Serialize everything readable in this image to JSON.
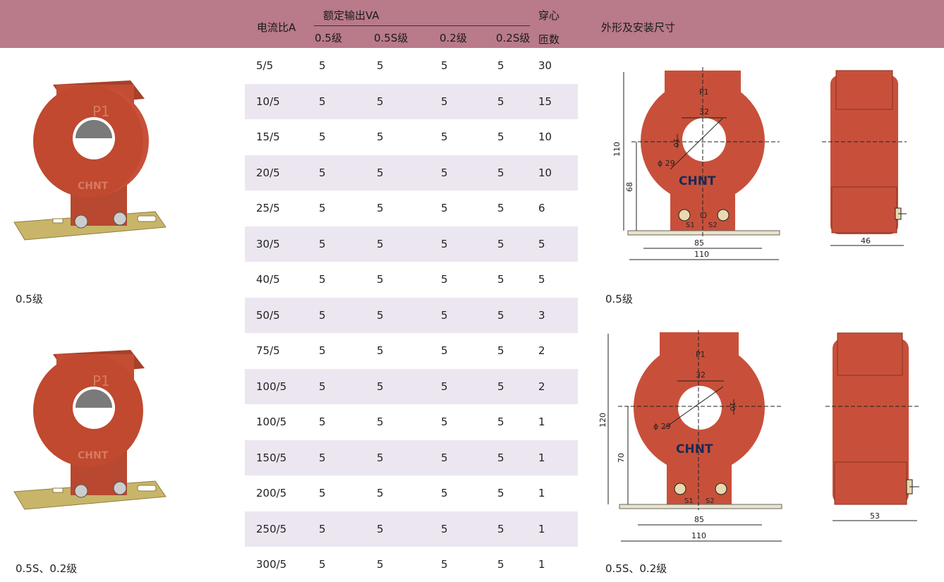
{
  "header": {
    "ratio": "电流比A",
    "rated_output": "额定输出VA",
    "class_05": "0.5级",
    "class_05s": "0.5S级",
    "class_02": "0.2级",
    "class_02s": "0.2S级",
    "turns_top": "穿心",
    "turns_bottom": "匝数",
    "dimensions": "外形及安装尺寸"
  },
  "rows": [
    {
      "ratio": "5/5",
      "c05": "5",
      "c05s": "5",
      "c02": "5",
      "c02s": "5",
      "turns": "30"
    },
    {
      "ratio": "10/5",
      "c05": "5",
      "c05s": "5",
      "c02": "5",
      "c02s": "5",
      "turns": "15"
    },
    {
      "ratio": "15/5",
      "c05": "5",
      "c05s": "5",
      "c02": "5",
      "c02s": "5",
      "turns": "10"
    },
    {
      "ratio": "20/5",
      "c05": "5",
      "c05s": "5",
      "c02": "5",
      "c02s": "5",
      "turns": "10"
    },
    {
      "ratio": "25/5",
      "c05": "5",
      "c05s": "5",
      "c02": "5",
      "c02s": "5",
      "turns": "6"
    },
    {
      "ratio": "30/5",
      "c05": "5",
      "c05s": "5",
      "c02": "5",
      "c02s": "5",
      "turns": "5"
    },
    {
      "ratio": "40/5",
      "c05": "5",
      "c05s": "5",
      "c02": "5",
      "c02s": "5",
      "turns": "5"
    },
    {
      "ratio": "50/5",
      "c05": "5",
      "c05s": "5",
      "c02": "5",
      "c02s": "5",
      "turns": "3"
    },
    {
      "ratio": "75/5",
      "c05": "5",
      "c05s": "5",
      "c02": "5",
      "c02s": "5",
      "turns": "2"
    },
    {
      "ratio": "100/5",
      "c05": "5",
      "c05s": "5",
      "c02": "5",
      "c02s": "5",
      "turns": "2"
    },
    {
      "ratio": "100/5",
      "c05": "5",
      "c05s": "5",
      "c02": "5",
      "c02s": "5",
      "turns": "1"
    },
    {
      "ratio": "150/5",
      "c05": "5",
      "c05s": "5",
      "c02": "5",
      "c02s": "5",
      "turns": "1"
    },
    {
      "ratio": "200/5",
      "c05": "5",
      "c05s": "5",
      "c02": "5",
      "c02s": "5",
      "turns": "1"
    },
    {
      "ratio": "250/5",
      "c05": "5",
      "c05s": "5",
      "c02": "5",
      "c02s": "5",
      "turns": "1"
    },
    {
      "ratio": "300/5",
      "c05": "5",
      "c05s": "5",
      "c02": "5",
      "c02s": "5",
      "turns": "1"
    }
  ],
  "captions": {
    "photo_top": "0.5级",
    "photo_bottom": "0.5S、0.2级",
    "drawing_top": "0.5级",
    "drawing_bottom": "0.5S、0.2级"
  },
  "drawing_top": {
    "p1": "P1",
    "brand": "CHNT",
    "s1": "S1",
    "s2": "S2",
    "d32": "32",
    "d10": "10",
    "dphi": "ϕ 29",
    "d110v": "110",
    "d68": "68",
    "d85": "85",
    "d110h": "110",
    "d46": "46"
  },
  "drawing_bottom": {
    "p1": "P1",
    "brand": "CHNT",
    "s1": "S1",
    "s2": "S2",
    "d32": "32",
    "d10": "10",
    "dphi": "ϕ 29",
    "d120": "120",
    "d70": "70",
    "d85": "85",
    "d110h": "110",
    "d53": "53"
  },
  "photo_text": {
    "p1": "P1",
    "brand": "CHNT"
  },
  "colors": {
    "header": "#b97a8a",
    "row_shade": "#ece6f1",
    "body_red": "#c8503a",
    "bracket": "#c8b56a"
  }
}
